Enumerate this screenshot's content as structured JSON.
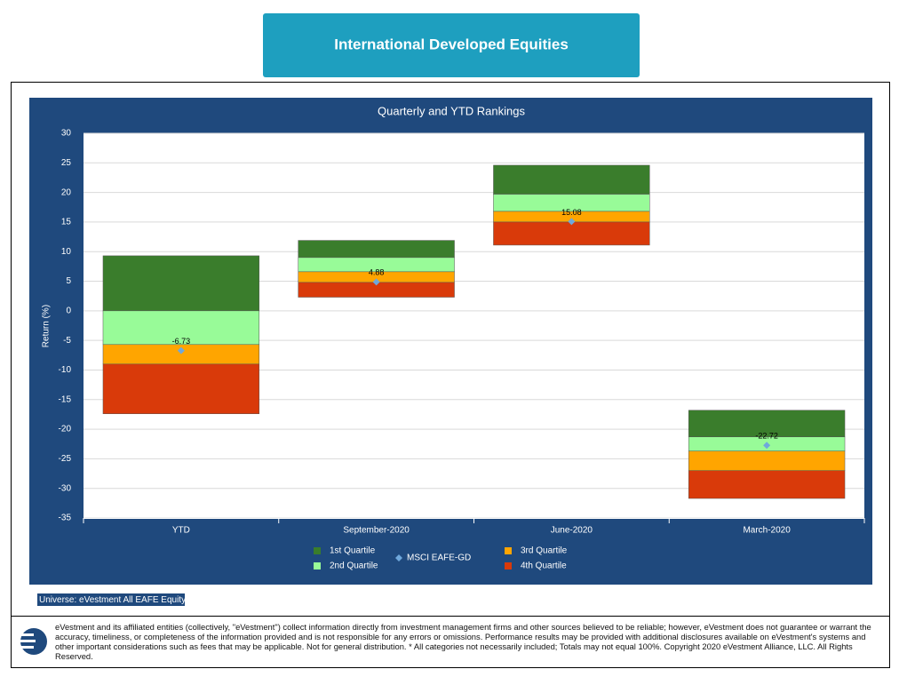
{
  "header": {
    "title": "International Developed Equities"
  },
  "chart_data": {
    "type": "floating-bar",
    "title": "Quarterly and YTD Rankings",
    "y_label": "Return (%)",
    "categories": [
      "YTD",
      "September-2020",
      "June-2020",
      "March-2020"
    ],
    "ylim": [
      -35,
      30
    ],
    "yticks": [
      -35,
      -30,
      -25,
      -20,
      -15,
      -10,
      -5,
      0,
      5,
      10,
      15,
      20,
      25,
      30
    ],
    "grid": true,
    "series": [
      {
        "name": "1st Quartile",
        "color": "#3a7d2c",
        "values": [
          [
            0,
            9.3
          ],
          [
            9.0,
            11.9
          ],
          [
            19.7,
            24.6
          ],
          [
            -21.3,
            -16.8
          ]
        ]
      },
      {
        "name": "2nd Quartile",
        "color": "#98fb98",
        "values": [
          [
            -5.7,
            0
          ],
          [
            6.6,
            9.0
          ],
          [
            16.8,
            19.7
          ],
          [
            -23.7,
            -21.3
          ]
        ]
      },
      {
        "name": "3rd Quartile",
        "color": "#ffa500",
        "values": [
          [
            -9.0,
            -5.7
          ],
          [
            4.8,
            6.6
          ],
          [
            15.0,
            16.8
          ],
          [
            -27.0,
            -23.7
          ]
        ]
      },
      {
        "name": "4th Quartile",
        "color": "#d93a0a",
        "values": [
          [
            -17.4,
            -9.0
          ],
          [
            2.3,
            4.8
          ],
          [
            11.1,
            15.0
          ],
          [
            -31.7,
            -27.0
          ]
        ]
      }
    ],
    "markers": {
      "name": "MSCI EAFE-GD",
      "color": "#6fa8dc",
      "values": [
        -6.73,
        4.88,
        15.08,
        -22.72
      ]
    }
  },
  "universe": "Universe: eVestment All EAFE Equity",
  "disclaimer": "eVestment and its affiliated entities (collectively, \"eVestment\") collect information directly from investment management firms and other sources believed to be reliable; however, eVestment does not guarantee or warrant the accuracy, timeliness, or completeness of the information provided and is not responsible for any errors or omissions. Performance results may be provided with additional disclosures available on eVestment's systems and other important considerations such as fees that may be applicable. Not for general distribution. * All categories not necessarily included; Totals may not equal 100%. Copyright 2020 eVestment Alliance, LLC. All Rights Reserved."
}
